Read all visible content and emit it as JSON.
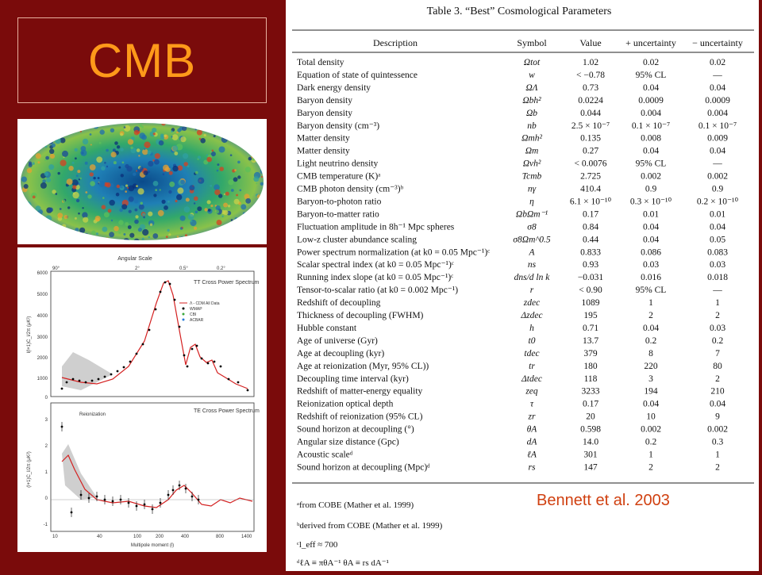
{
  "slide": {
    "title": "CMB",
    "credit": "Bennett et al. 2003"
  },
  "plot_tt": {
    "top_axis_label": "Angular Scale",
    "top_ticks": [
      "90°",
      "2°",
      "0.5°",
      "0.2°"
    ],
    "y_ticks": [
      "6000",
      "5000",
      "4000",
      "3000",
      "2000",
      "1000",
      "0"
    ],
    "ylabel": "l(l+1)C_l/2π (μK²)",
    "legend_title": "TT Cross Power Spectrum",
    "legend_items": [
      "Λ - CDM All Data",
      "WMAP",
      "CBI",
      "ACBAR"
    ]
  },
  "plot_te": {
    "y_ticks": [
      "3",
      "2",
      "1",
      "0",
      "-1"
    ],
    "ylabel": "(l+1)C_l/2π (μK²)",
    "legend_title": "TE Cross Power Spectrum",
    "annotation": "Reionization",
    "x_ticks": [
      "10",
      "40",
      "100",
      "200",
      "400",
      "800",
      "1400"
    ],
    "xlabel": "Multipole moment (l)"
  },
  "table": {
    "caption": "Table 3.   “Best” Cosmological Parameters",
    "headers": [
      "Description",
      "Symbol",
      "Value",
      "+ uncertainty",
      "− uncertainty"
    ],
    "rows": [
      [
        "Total density",
        "Ωtot",
        "1.02",
        "0.02",
        "0.02"
      ],
      [
        "Equation of state of quintessence",
        "w",
        "< −0.78",
        "95% CL",
        "—"
      ],
      [
        "Dark energy density",
        "ΩΛ",
        "0.73",
        "0.04",
        "0.04"
      ],
      [
        "Baryon density",
        "Ωbh²",
        "0.0224",
        "0.0009",
        "0.0009"
      ],
      [
        "Baryon density",
        "Ωb",
        "0.044",
        "0.004",
        "0.004"
      ],
      [
        "Baryon density (cm⁻³)",
        "nb",
        "2.5 × 10⁻⁷",
        "0.1 × 10⁻⁷",
        "0.1 × 10⁻⁷"
      ],
      [
        "Matter density",
        "Ωmh²",
        "0.135",
        "0.008",
        "0.009"
      ],
      [
        "Matter density",
        "Ωm",
        "0.27",
        "0.04",
        "0.04"
      ],
      [
        "Light neutrino density",
        "Ωνh²",
        "< 0.0076",
        "95% CL",
        "—"
      ],
      [
        "CMB temperature (K)ᵃ",
        "Tcmb",
        "2.725",
        "0.002",
        "0.002"
      ],
      [
        "CMB photon density (cm⁻³)ᵇ",
        "nγ",
        "410.4",
        "0.9",
        "0.9"
      ],
      [
        "Baryon-to-photon ratio",
        "η",
        "6.1 × 10⁻¹⁰",
        "0.3 × 10⁻¹⁰",
        "0.2 × 10⁻¹⁰"
      ],
      [
        "Baryon-to-matter ratio",
        "ΩbΩm⁻¹",
        "0.17",
        "0.01",
        "0.01"
      ],
      [
        "Fluctuation amplitude in 8h⁻¹ Mpc spheres",
        "σ8",
        "0.84",
        "0.04",
        "0.04"
      ],
      [
        "Low-z cluster abundance scaling",
        "σ8Ωm^0.5",
        "0.44",
        "0.04",
        "0.05"
      ],
      [
        "Power spectrum normalization (at k0 = 0.05 Mpc⁻¹)ᶜ",
        "A",
        "0.833",
        "0.086",
        "0.083"
      ],
      [
        "Scalar spectral index (at k0 = 0.05 Mpc⁻¹)ᶜ",
        "ns",
        "0.93",
        "0.03",
        "0.03"
      ],
      [
        "Running index slope (at k0 = 0.05 Mpc⁻¹)ᶜ",
        "dns/d ln k",
        "−0.031",
        "0.016",
        "0.018"
      ],
      [
        "Tensor-to-scalar ratio (at k0 = 0.002 Mpc⁻¹)",
        "r",
        "< 0.90",
        "95% CL",
        "—"
      ],
      [
        "Redshift of decoupling",
        "zdec",
        "1089",
        "1",
        "1"
      ],
      [
        "Thickness of decoupling (FWHM)",
        "Δzdec",
        "195",
        "2",
        "2"
      ],
      [
        "Hubble constant",
        "h",
        "0.71",
        "0.04",
        "0.03"
      ],
      [
        "Age of universe (Gyr)",
        "t0",
        "13.7",
        "0.2",
        "0.2"
      ],
      [
        "Age at decoupling (kyr)",
        "tdec",
        "379",
        "8",
        "7"
      ],
      [
        "Age at reionization (Myr, 95% CL))",
        "tr",
        "180",
        "220",
        "80"
      ],
      [
        "Decoupling time interval (kyr)",
        "Δtdec",
        "118",
        "3",
        "2"
      ],
      [
        "Redshift of matter-energy equality",
        "zeq",
        "3233",
        "194",
        "210"
      ],
      [
        "Reionization optical depth",
        "τ",
        "0.17",
        "0.04",
        "0.04"
      ],
      [
        "Redshift of reionization (95% CL)",
        "zr",
        "20",
        "10",
        "9"
      ],
      [
        "Sound horizon at decoupling (°)",
        "θA",
        "0.598",
        "0.002",
        "0.002"
      ],
      [
        "Angular size distance (Gpc)",
        "dA",
        "14.0",
        "0.2",
        "0.3"
      ],
      [
        "Acoustic scaleᵈ",
        "ℓA",
        "301",
        "1",
        "1"
      ],
      [
        "Sound horizon at decoupling (Mpc)ᵈ",
        "rs",
        "147",
        "2",
        "2"
      ]
    ],
    "footnotes": [
      "ᵃfrom COBE (Mather et al. 1999)",
      "ᵇderived from COBE (Mather et al. 1999)",
      "ᶜl_eff ≈ 700",
      "ᵈℓA ≡ πθA⁻¹   θA ≡ rs dA⁻¹"
    ]
  }
}
